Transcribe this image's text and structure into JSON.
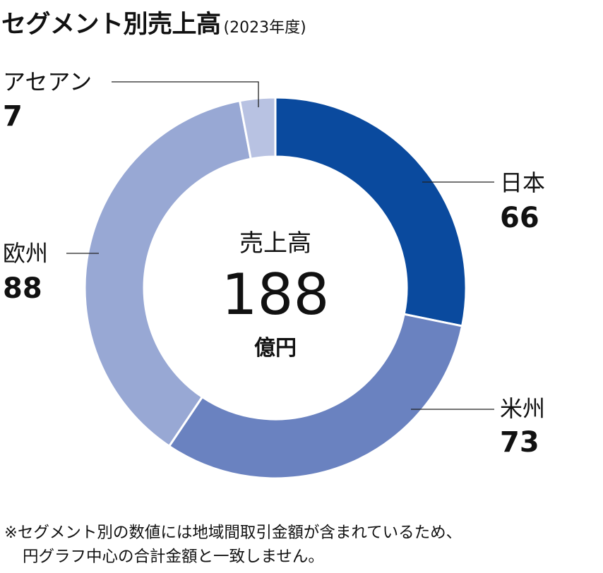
{
  "title": "セグメント別売上高",
  "subtitle": "(2023年度)",
  "chart_data": {
    "type": "pie",
    "style": "donut",
    "title": "セグメント別売上高",
    "subtitle": "(2023年度)",
    "center": {
      "label": "売上高",
      "total": "188",
      "unit": "億円"
    },
    "series": [
      {
        "name": "日本",
        "value": 66,
        "color": "#0a4a9e"
      },
      {
        "name": "米州",
        "value": 73,
        "color": "#6a82c0"
      },
      {
        "name": "欧州",
        "value": 88,
        "color": "#98a8d4"
      },
      {
        "name": "アセアン",
        "value": 7,
        "color": "#b8c2e2"
      }
    ]
  },
  "note": {
    "line1": "※セグメント別の数値には地域間取引金額が含まれているため、",
    "line2": "円グラフ中心の合計金額と一致しません。"
  }
}
